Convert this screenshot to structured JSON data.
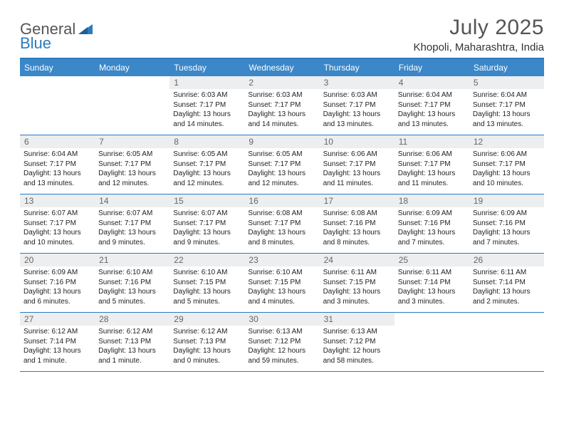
{
  "brand": {
    "name_a": "General",
    "name_b": "Blue"
  },
  "title": {
    "month": "July 2025",
    "location": "Khopoli, Maharashtra, India"
  },
  "colors": {
    "header_bg": "#3b87c8",
    "accent": "#2b7bbf",
    "daynum_bg": "#eceef0",
    "text": "#333333"
  },
  "weekdays": [
    "Sunday",
    "Monday",
    "Tuesday",
    "Wednesday",
    "Thursday",
    "Friday",
    "Saturday"
  ],
  "weeks": [
    [
      {
        "n": "",
        "sunrise": "",
        "sunset": "",
        "daylight": ""
      },
      {
        "n": "",
        "sunrise": "",
        "sunset": "",
        "daylight": ""
      },
      {
        "n": "1",
        "sunrise": "6:03 AM",
        "sunset": "7:17 PM",
        "daylight": "13 hours and 14 minutes."
      },
      {
        "n": "2",
        "sunrise": "6:03 AM",
        "sunset": "7:17 PM",
        "daylight": "13 hours and 14 minutes."
      },
      {
        "n": "3",
        "sunrise": "6:03 AM",
        "sunset": "7:17 PM",
        "daylight": "13 hours and 13 minutes."
      },
      {
        "n": "4",
        "sunrise": "6:04 AM",
        "sunset": "7:17 PM",
        "daylight": "13 hours and 13 minutes."
      },
      {
        "n": "5",
        "sunrise": "6:04 AM",
        "sunset": "7:17 PM",
        "daylight": "13 hours and 13 minutes."
      }
    ],
    [
      {
        "n": "6",
        "sunrise": "6:04 AM",
        "sunset": "7:17 PM",
        "daylight": "13 hours and 13 minutes."
      },
      {
        "n": "7",
        "sunrise": "6:05 AM",
        "sunset": "7:17 PM",
        "daylight": "13 hours and 12 minutes."
      },
      {
        "n": "8",
        "sunrise": "6:05 AM",
        "sunset": "7:17 PM",
        "daylight": "13 hours and 12 minutes."
      },
      {
        "n": "9",
        "sunrise": "6:05 AM",
        "sunset": "7:17 PM",
        "daylight": "13 hours and 12 minutes."
      },
      {
        "n": "10",
        "sunrise": "6:06 AM",
        "sunset": "7:17 PM",
        "daylight": "13 hours and 11 minutes."
      },
      {
        "n": "11",
        "sunrise": "6:06 AM",
        "sunset": "7:17 PM",
        "daylight": "13 hours and 11 minutes."
      },
      {
        "n": "12",
        "sunrise": "6:06 AM",
        "sunset": "7:17 PM",
        "daylight": "13 hours and 10 minutes."
      }
    ],
    [
      {
        "n": "13",
        "sunrise": "6:07 AM",
        "sunset": "7:17 PM",
        "daylight": "13 hours and 10 minutes."
      },
      {
        "n": "14",
        "sunrise": "6:07 AM",
        "sunset": "7:17 PM",
        "daylight": "13 hours and 9 minutes."
      },
      {
        "n": "15",
        "sunrise": "6:07 AM",
        "sunset": "7:17 PM",
        "daylight": "13 hours and 9 minutes."
      },
      {
        "n": "16",
        "sunrise": "6:08 AM",
        "sunset": "7:17 PM",
        "daylight": "13 hours and 8 minutes."
      },
      {
        "n": "17",
        "sunrise": "6:08 AM",
        "sunset": "7:16 PM",
        "daylight": "13 hours and 8 minutes."
      },
      {
        "n": "18",
        "sunrise": "6:09 AM",
        "sunset": "7:16 PM",
        "daylight": "13 hours and 7 minutes."
      },
      {
        "n": "19",
        "sunrise": "6:09 AM",
        "sunset": "7:16 PM",
        "daylight": "13 hours and 7 minutes."
      }
    ],
    [
      {
        "n": "20",
        "sunrise": "6:09 AM",
        "sunset": "7:16 PM",
        "daylight": "13 hours and 6 minutes."
      },
      {
        "n": "21",
        "sunrise": "6:10 AM",
        "sunset": "7:16 PM",
        "daylight": "13 hours and 5 minutes."
      },
      {
        "n": "22",
        "sunrise": "6:10 AM",
        "sunset": "7:15 PM",
        "daylight": "13 hours and 5 minutes."
      },
      {
        "n": "23",
        "sunrise": "6:10 AM",
        "sunset": "7:15 PM",
        "daylight": "13 hours and 4 minutes."
      },
      {
        "n": "24",
        "sunrise": "6:11 AM",
        "sunset": "7:15 PM",
        "daylight": "13 hours and 3 minutes."
      },
      {
        "n": "25",
        "sunrise": "6:11 AM",
        "sunset": "7:14 PM",
        "daylight": "13 hours and 3 minutes."
      },
      {
        "n": "26",
        "sunrise": "6:11 AM",
        "sunset": "7:14 PM",
        "daylight": "13 hours and 2 minutes."
      }
    ],
    [
      {
        "n": "27",
        "sunrise": "6:12 AM",
        "sunset": "7:14 PM",
        "daylight": "13 hours and 1 minute."
      },
      {
        "n": "28",
        "sunrise": "6:12 AM",
        "sunset": "7:13 PM",
        "daylight": "13 hours and 1 minute."
      },
      {
        "n": "29",
        "sunrise": "6:12 AM",
        "sunset": "7:13 PM",
        "daylight": "13 hours and 0 minutes."
      },
      {
        "n": "30",
        "sunrise": "6:13 AM",
        "sunset": "7:12 PM",
        "daylight": "12 hours and 59 minutes."
      },
      {
        "n": "31",
        "sunrise": "6:13 AM",
        "sunset": "7:12 PM",
        "daylight": "12 hours and 58 minutes."
      },
      {
        "n": "",
        "sunrise": "",
        "sunset": "",
        "daylight": ""
      },
      {
        "n": "",
        "sunrise": "",
        "sunset": "",
        "daylight": ""
      }
    ]
  ],
  "labels": {
    "sunrise": "Sunrise:",
    "sunset": "Sunset:",
    "daylight": "Daylight:"
  }
}
